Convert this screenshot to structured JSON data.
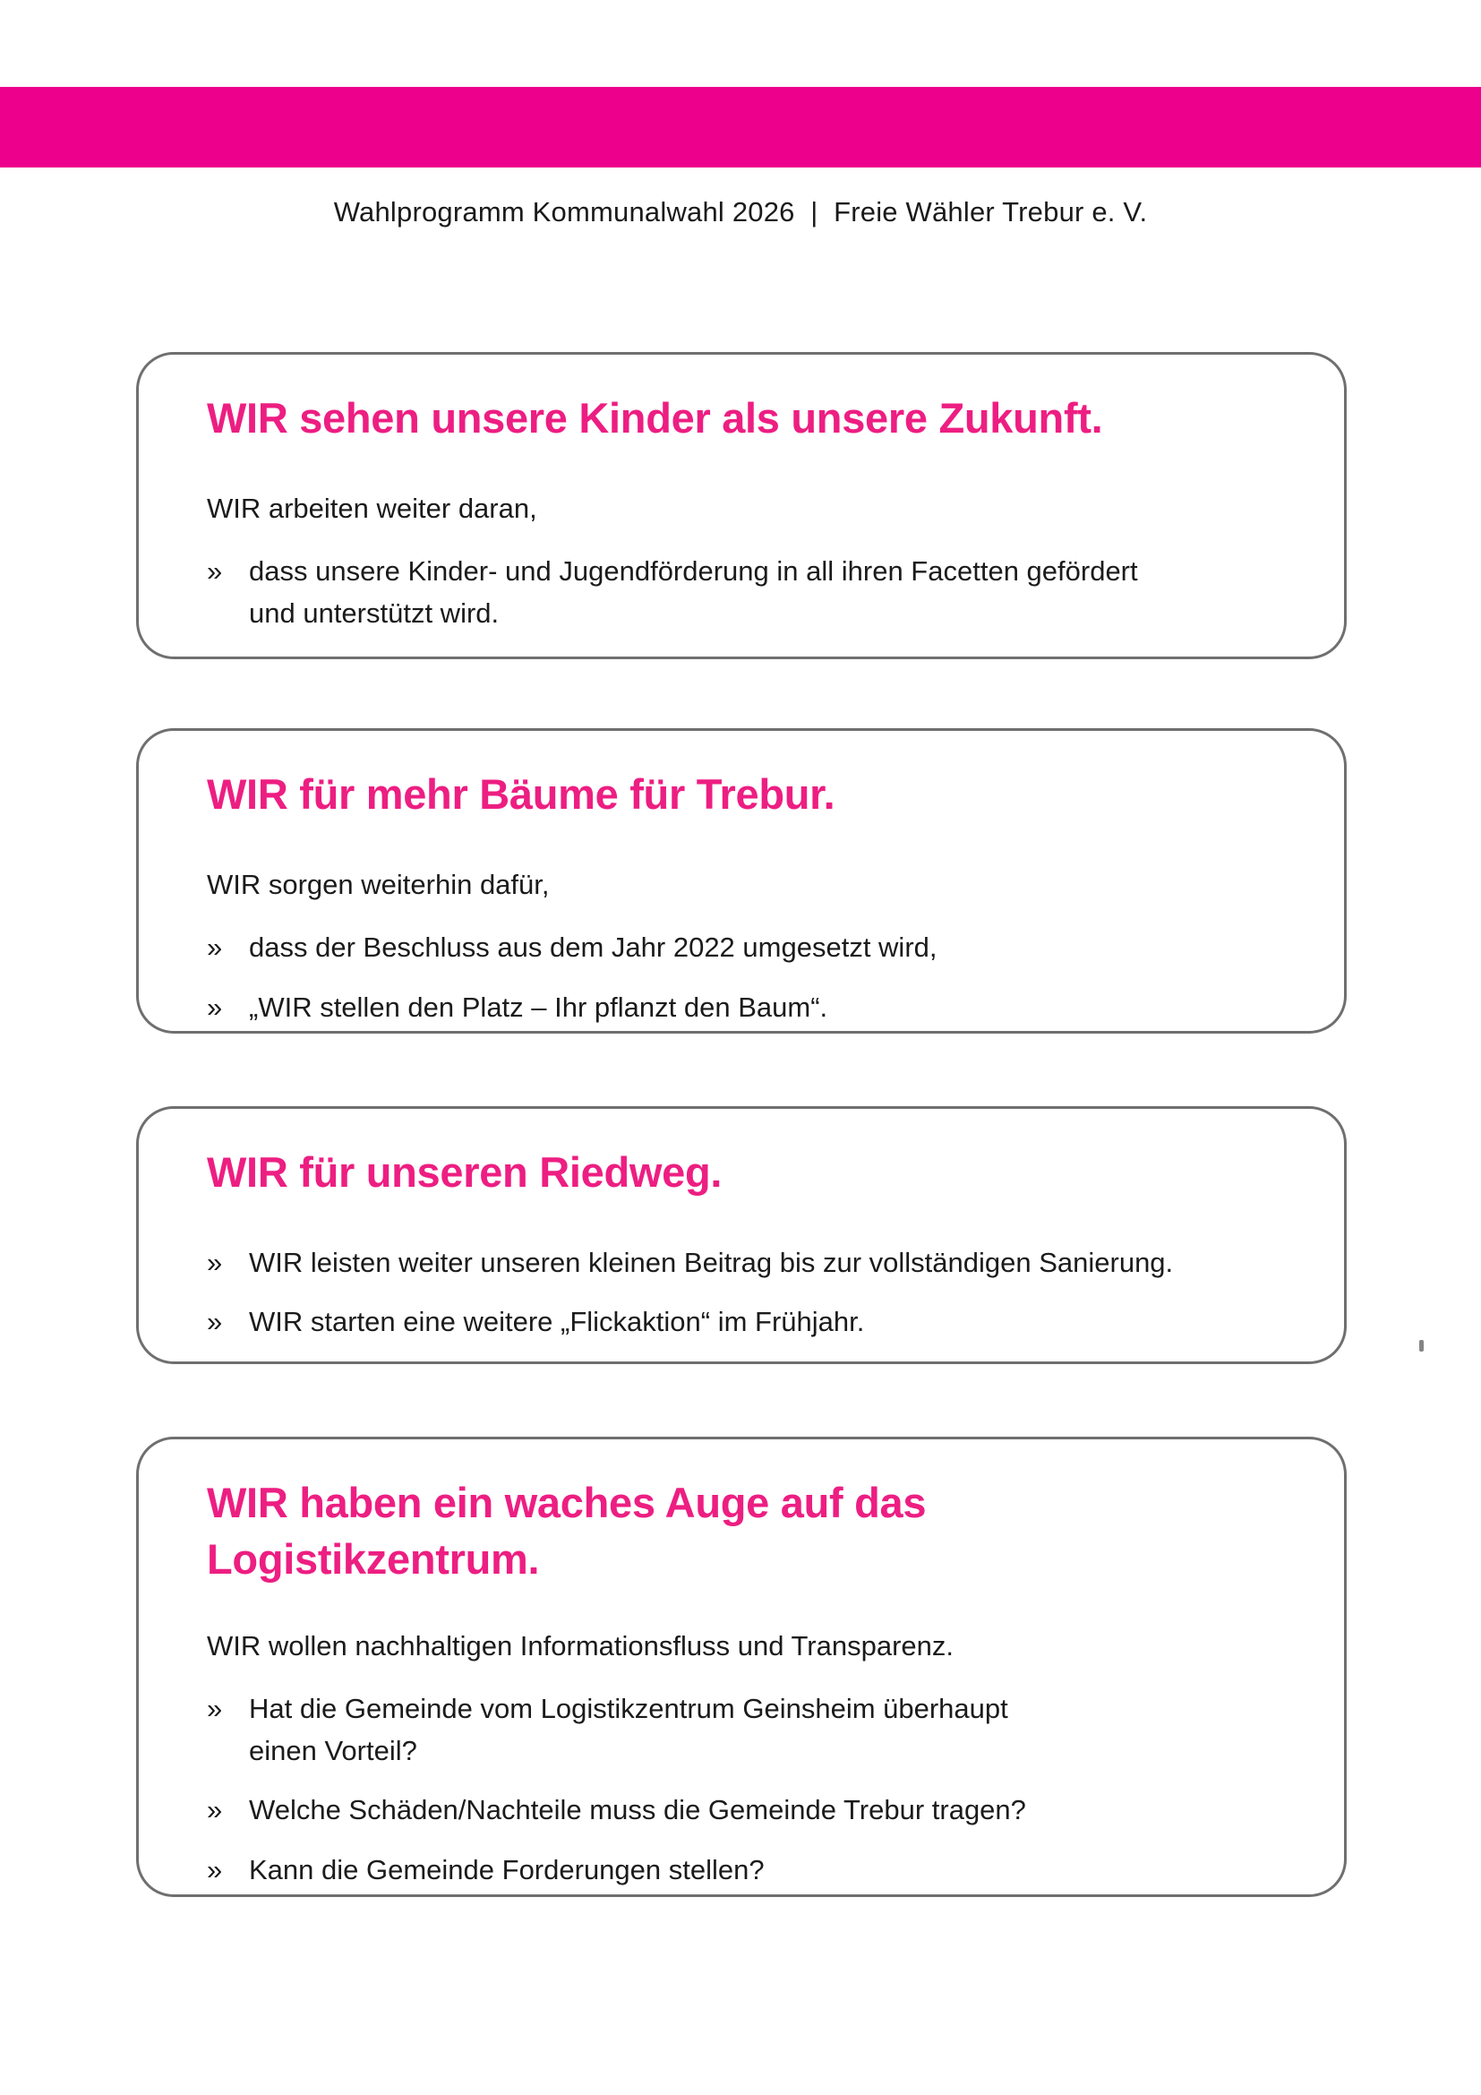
{
  "header": {
    "text": "Wahlprogramm Kommunalwahl 2026  |  Freie Wähler Trebur e. V."
  },
  "glyphs": {
    "bullet_marker": "»"
  },
  "colors": {
    "banner_pink": "#ec008c",
    "heading_pink": "#ed1e82",
    "card_border_gray": "#6f6f6f",
    "body_text": "#1b1b1b"
  },
  "boxes": [
    {
      "title": "WIR sehen unsere Kinder als unsere Zukunft.",
      "intro": "WIR arbeiten weiter daran,",
      "bullets": [
        "dass unsere Kinder- und Jugendförderung in all ihren Facetten gefördert\nund unterstützt wird."
      ]
    },
    {
      "title": "WIR für mehr Bäume für Trebur.",
      "intro": "WIR sorgen weiterhin dafür,",
      "bullets": [
        "dass der Beschluss aus dem Jahr 2022 umgesetzt wird,",
        "„WIR stellen den Platz – Ihr pflanzt den Baum“."
      ]
    },
    {
      "title": "WIR für unseren Riedweg.",
      "bullets": [
        "WIR leisten weiter unseren kleinen Beitrag bis zur vollständigen Sanierung.",
        "WIR starten eine weitere „Flickaktion“ im Frühjahr."
      ]
    },
    {
      "title": "WIR haben ein waches Auge auf das\nLogistikzentrum.",
      "intro": "WIR wollen nachhaltigen Informationsfluss und Transparenz.",
      "bullets": [
        "Hat die Gemeinde vom Logistikzentrum Geinsheim überhaupt\neinen Vorteil?",
        "Welche Schäden/Nachteile muss die Gemeinde Trebur tragen?",
        "Kann die Gemeinde Forderungen stellen?"
      ]
    }
  ]
}
